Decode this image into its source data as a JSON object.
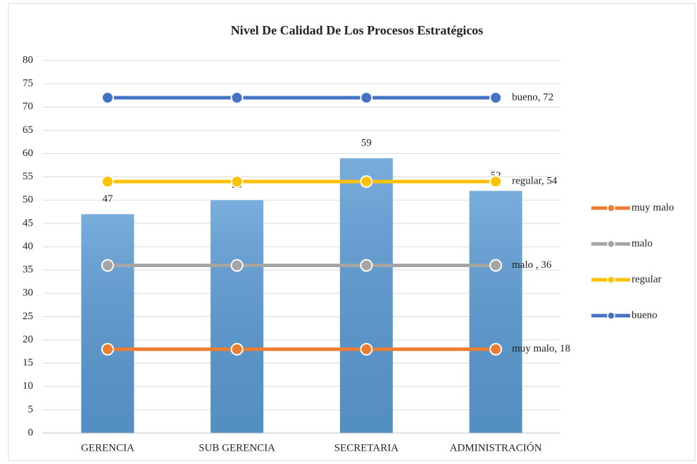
{
  "chart_data": {
    "type": "bar",
    "title": "Nivel De Calidad De Los Procesos Estratégicos",
    "categories": [
      "GERENCIA",
      "SUB GERENCIA",
      "SECRETARIA",
      "ADMINISTRACIÓN"
    ],
    "values": [
      47,
      50,
      59,
      52
    ],
    "color": "#5b9bd5",
    "series": [
      {
        "name": "muy malo",
        "type": "line",
        "color": "#ed7d31",
        "values": [
          18,
          18,
          18,
          18
        ],
        "value_labels": [
          null,
          null,
          null,
          "muy malo, 18"
        ]
      },
      {
        "name": "malo",
        "type": "line",
        "color": "#a5a5a5",
        "values": [
          36,
          36,
          36,
          36
        ],
        "value_labels": [
          null,
          null,
          null,
          "malo , 36"
        ]
      },
      {
        "name": "regular",
        "type": "line",
        "color": "#ffc000",
        "values": [
          54,
          54,
          54,
          54
        ],
        "value_labels": [
          null,
          null,
          null,
          "regular, 54"
        ]
      },
      {
        "name": "bueno",
        "type": "line",
        "color": "#4472c4",
        "values": [
          72,
          72,
          72,
          72
        ],
        "value_labels": [
          null,
          null,
          null,
          "bueno, 72"
        ]
      }
    ],
    "ylim": [
      0,
      80
    ],
    "yticks": [
      0,
      5,
      10,
      15,
      20,
      25,
      30,
      35,
      40,
      45,
      50,
      55,
      60,
      65,
      70,
      75,
      80
    ],
    "grid": true,
    "legend": "right"
  }
}
